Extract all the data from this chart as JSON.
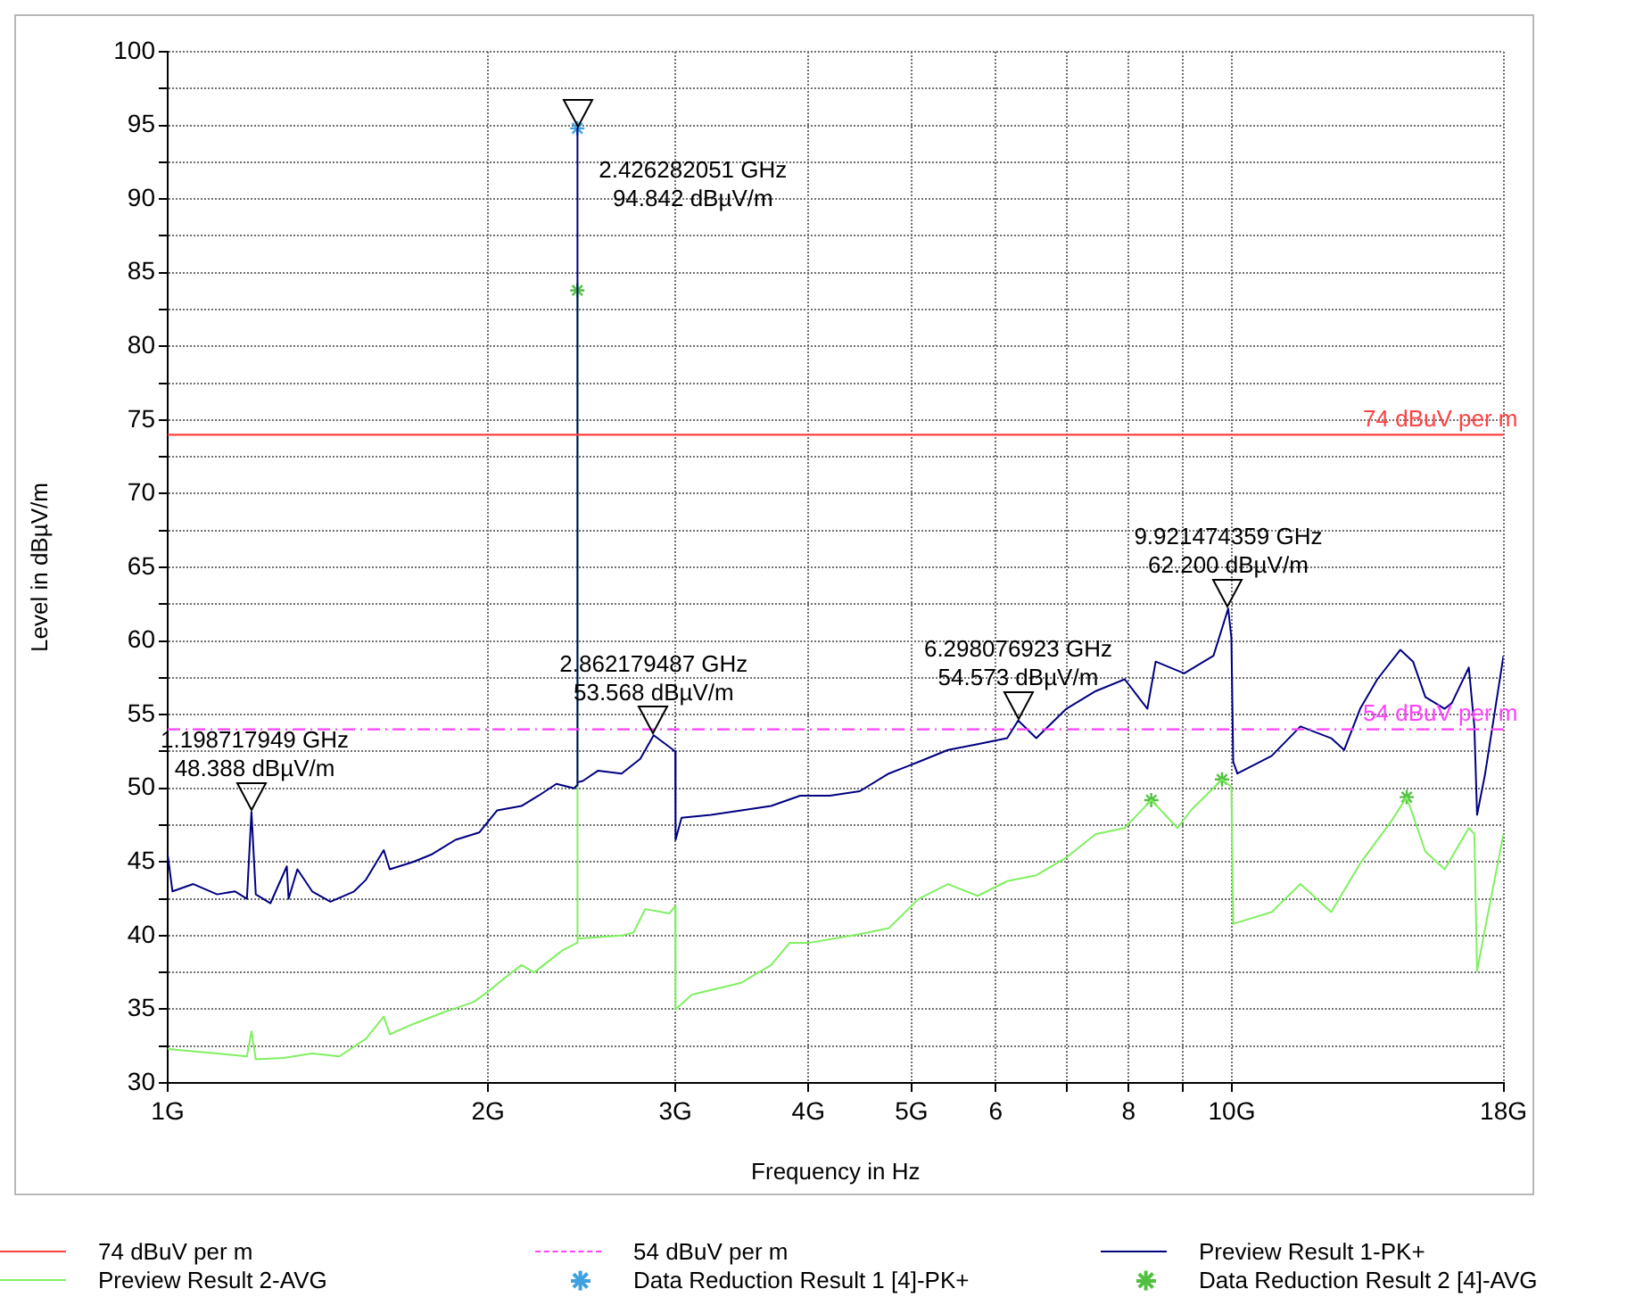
{
  "chart_data": {
    "type": "line",
    "xlabel": "Frequency in Hz",
    "ylabel": "Level in dBµV/m",
    "log": "x",
    "xlim": [
      1,
      18
    ],
    "ylim": [
      30,
      100
    ],
    "xticks": [
      {
        "value": 1,
        "label": "1G"
      },
      {
        "value": 2,
        "label": "2G"
      },
      {
        "value": 3,
        "label": "3G"
      },
      {
        "value": 4,
        "label": "4G"
      },
      {
        "value": 5,
        "label": "5G"
      },
      6,
      {
        "value": 7,
        "label": null
      },
      8,
      {
        "value": 9,
        "label": null
      },
      {
        "value": 10,
        "label": "10G"
      },
      {
        "value": 18,
        "label": "18G"
      }
    ],
    "yticks": [
      30,
      {
        "value": 32.5,
        "label": null
      },
      35,
      {
        "value": 37.5,
        "label": null
      },
      40,
      {
        "value": 42.5,
        "label": null
      },
      45,
      {
        "value": 47.5,
        "label": null
      },
      50,
      {
        "value": 52.5,
        "label": null
      },
      55,
      {
        "value": 57.5,
        "label": null
      },
      60,
      {
        "value": 62.5,
        "label": null
      },
      65,
      {
        "value": 67.5,
        "label": null
      },
      70,
      {
        "value": 72.5,
        "label": null
      },
      75,
      {
        "value": 77.5,
        "label": null
      },
      80,
      {
        "value": 82.5,
        "label": null
      },
      85,
      {
        "value": 87.5,
        "label": null
      },
      90,
      {
        "value": 92.5,
        "label": null
      },
      95,
      {
        "value": 97.5,
        "label": null
      },
      100
    ],
    "grid": true,
    "legend": "bottom",
    "ref_lines": [
      {
        "axis": "y",
        "value": 74,
        "label": "74 dBuV per m",
        "color": "#ff4040",
        "line_style": "solid"
      },
      {
        "axis": "y",
        "value": 54,
        "label": "54 dBuV per m",
        "color": "#ff40ff",
        "line_style": "dashed"
      }
    ],
    "series": [
      {
        "name": "Preview Result 1-PK+",
        "color": "#000080",
        "marker": "none",
        "line_style": "solid",
        "x": [
          1.0,
          1.0104,
          1.057,
          1.113,
          1.157,
          1.187,
          1.198717949,
          1.21,
          1.249,
          1.294,
          1.299,
          1.324,
          1.367,
          1.422,
          1.497,
          1.536,
          1.596,
          1.617,
          1.701,
          1.769,
          1.864,
          1.962,
          2.04,
          2.15,
          2.231,
          2.319,
          2.41,
          2.424,
          2.426282051,
          2.428,
          2.455,
          2.538,
          2.67,
          2.78,
          2.862179487,
          2.962,
          2.999,
          3.001,
          3.04,
          3.24,
          3.46,
          3.69,
          3.93,
          4.19,
          4.47,
          4.76,
          5.08,
          5.41,
          5.77,
          6.15,
          6.298076923,
          6.55,
          6.99,
          7.45,
          7.93,
          8.33,
          8.48,
          9.02,
          9.61,
          9.921474359,
          9.99,
          10.03,
          10.12,
          10.9,
          11.6,
          12.4,
          12.75,
          13.2,
          13.7,
          14.4,
          14.8,
          15.2,
          15.85,
          16.1,
          16.7,
          16.9,
          17.0,
          17.3,
          18.0
        ],
        "values": [
          45.5,
          43.0,
          43.5,
          42.8,
          43.0,
          42.5,
          48.4,
          42.8,
          42.2,
          44.7,
          42.5,
          44.5,
          43.0,
          42.3,
          43.0,
          43.8,
          45.8,
          44.5,
          45.0,
          45.5,
          46.5,
          47.0,
          48.5,
          48.8,
          49.5,
          50.3,
          50.0,
          50.2,
          94.8,
          50.4,
          50.5,
          51.2,
          51.0,
          52.0,
          53.6,
          52.8,
          52.5,
          46.5,
          48.0,
          48.2,
          48.5,
          48.8,
          49.5,
          49.5,
          49.8,
          51.0,
          51.8,
          52.6,
          53.0,
          53.4,
          54.6,
          53.4,
          55.4,
          56.6,
          57.4,
          55.4,
          58.6,
          57.8,
          59.0,
          62.2,
          60.2,
          51.8,
          51.0,
          52.2,
          54.2,
          53.4,
          52.6,
          55.4,
          57.4,
          59.4,
          58.6,
          56.2,
          55.4,
          55.8,
          58.2,
          54.2,
          48.2,
          51.0,
          59.0
        ]
      },
      {
        "name": "Preview Result 2-AVG",
        "color": "#80f060",
        "marker": "none",
        "line_style": "solid",
        "x": [
          1.0,
          1.113,
          1.187,
          1.198717949,
          1.21,
          1.285,
          1.367,
          1.45,
          1.536,
          1.596,
          1.617,
          1.701,
          1.818,
          1.94,
          2.0,
          2.063,
          2.15,
          2.21,
          2.35,
          2.424,
          2.426282051,
          2.428,
          2.67,
          2.74,
          2.81,
          2.96,
          2.999,
          3.001,
          3.11,
          3.46,
          3.69,
          3.84,
          4.0,
          4.47,
          4.76,
          5.08,
          5.41,
          5.77,
          6.15,
          6.55,
          6.99,
          7.45,
          7.93,
          8.4,
          8.89,
          9.15,
          9.79,
          9.99,
          10.03,
          10.9,
          11.6,
          12.4,
          13.2,
          14.1,
          14.6,
          15.2,
          15.85,
          16.7,
          16.9,
          17.0,
          17.3,
          18.0
        ],
        "values": [
          32.3,
          32.0,
          31.8,
          33.5,
          31.6,
          31.7,
          32.0,
          31.8,
          33.0,
          34.5,
          33.3,
          34.0,
          34.8,
          35.5,
          36.2,
          37.0,
          38.0,
          37.5,
          39.0,
          39.5,
          83.8,
          39.8,
          40.0,
          40.2,
          41.8,
          41.5,
          42.0,
          35.0,
          36.0,
          36.8,
          38.0,
          39.5,
          39.5,
          40.1,
          40.5,
          42.5,
          43.5,
          42.7,
          43.7,
          44.1,
          45.3,
          46.9,
          47.3,
          49.2,
          47.3,
          48.5,
          50.6,
          50.1,
          40.8,
          41.6,
          43.5,
          41.6,
          44.9,
          47.7,
          49.4,
          45.7,
          44.5,
          47.3,
          46.9,
          37.6,
          40.5,
          46.9
        ]
      },
      {
        "name": "Data Reduction Result 1 [4]-PK+",
        "type": "scatter",
        "color": "#40a0e0",
        "marker": "cross",
        "x": [
          2.426282051
        ],
        "values": [
          94.8
        ]
      },
      {
        "name": "Data Reduction Result 2 [4]-AVG",
        "type": "scatter",
        "color": "#50c040",
        "marker": "cross",
        "x": [
          2.426282051,
          8.4,
          9.79,
          14.6
        ],
        "values": [
          83.8,
          49.2,
          50.6,
          49.4
        ]
      }
    ],
    "annotations": [
      {
        "text": "1.198717949 GHz\n48.388 dBµV/m",
        "x": 1.198717949,
        "y": 48.388
      },
      {
        "text": "2.426282051 GHz\n94.842 dBµV/m",
        "x": 2.426282051,
        "y": 94.842
      },
      {
        "text": "2.862179487 GHz\n53.568 dBµV/m",
        "x": 2.862179487,
        "y": 53.568
      },
      {
        "text": "6.298076923 GHz\n54.573 dBµV/m",
        "x": 6.298076923,
        "y": 54.573
      },
      {
        "text": "9.921474359 GHz\n62.200 dBµV/m",
        "x": 9.921474359,
        "y": 62.2
      }
    ]
  }
}
